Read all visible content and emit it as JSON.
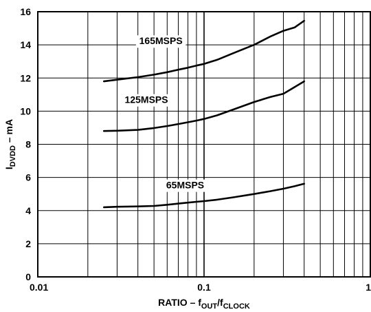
{
  "chart_data": {
    "type": "line",
    "xscale": "log",
    "xlim": [
      0.01,
      1
    ],
    "ylim": [
      0,
      16
    ],
    "grid": true,
    "x_ticks": [
      {
        "value": 0.01,
        "label": "0.01"
      },
      {
        "value": 0.1,
        "label": "0.1"
      },
      {
        "value": 1,
        "label": "1"
      }
    ],
    "y_ticks": [
      {
        "value": 0,
        "label": "0"
      },
      {
        "value": 2,
        "label": "2"
      },
      {
        "value": 4,
        "label": "4"
      },
      {
        "value": 6,
        "label": "6"
      },
      {
        "value": 8,
        "label": "8"
      },
      {
        "value": 10,
        "label": "10"
      },
      {
        "value": 12,
        "label": "12"
      },
      {
        "value": 14,
        "label": "14"
      },
      {
        "value": 16,
        "label": "16"
      }
    ],
    "xlabel": {
      "main": "RATIO – f",
      "sub1": "OUT",
      "mid": "/f",
      "sub2": "CLOCK"
    },
    "ylabel": {
      "main": "I",
      "sub": "DVDD",
      "rest": " – mA"
    },
    "series": [
      {
        "name": "165MSPS",
        "label_at": [
          0.055,
          14.2
        ],
        "x": [
          0.025,
          0.03,
          0.04,
          0.05,
          0.06,
          0.07,
          0.08,
          0.09,
          0.1,
          0.12,
          0.15,
          0.2,
          0.25,
          0.3,
          0.35,
          0.4
        ],
        "y": [
          11.8,
          11.9,
          12.05,
          12.2,
          12.35,
          12.5,
          12.62,
          12.75,
          12.85,
          13.1,
          13.5,
          14.0,
          14.5,
          14.85,
          15.05,
          15.45
        ]
      },
      {
        "name": "125MSPS",
        "label_at": [
          0.045,
          10.65
        ],
        "x": [
          0.025,
          0.03,
          0.04,
          0.05,
          0.06,
          0.07,
          0.08,
          0.09,
          0.1,
          0.12,
          0.15,
          0.2,
          0.25,
          0.3,
          0.35,
          0.4
        ],
        "y": [
          8.8,
          8.82,
          8.87,
          8.98,
          9.1,
          9.22,
          9.33,
          9.43,
          9.53,
          9.75,
          10.1,
          10.55,
          10.85,
          11.05,
          11.45,
          11.8
        ]
      },
      {
        "name": "65MSPS",
        "label_at": [
          0.077,
          5.5
        ],
        "x": [
          0.025,
          0.03,
          0.04,
          0.05,
          0.06,
          0.07,
          0.08,
          0.09,
          0.1,
          0.12,
          0.15,
          0.2,
          0.25,
          0.3,
          0.35,
          0.4
        ],
        "y": [
          4.2,
          4.23,
          4.25,
          4.28,
          4.35,
          4.42,
          4.48,
          4.53,
          4.57,
          4.66,
          4.8,
          5.0,
          5.17,
          5.32,
          5.47,
          5.62
        ]
      }
    ]
  }
}
